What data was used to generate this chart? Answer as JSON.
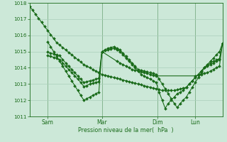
{
  "bg_color": "#cce8d8",
  "grid_color": "#aacfba",
  "line_color": "#1a6b1a",
  "xlabel": "Pression niveau de la mer(  hPa  )",
  "xlabel_color": "#1a6b1a",
  "ytick_color": "#1a6b1a",
  "xtick_color": "#1a6b1a",
  "ylim": [
    1011,
    1018
  ],
  "xtick_positions": [
    18,
    72,
    127,
    165
  ],
  "xtick_labels": [
    "Sam",
    "Mar",
    "Dim",
    "Lun"
  ],
  "vlines_x": [
    18,
    72,
    127,
    165
  ],
  "yticks": [
    1011,
    1012,
    1013,
    1014,
    1015,
    1016,
    1017,
    1018
  ],
  "series1_x": [
    0,
    3,
    6,
    9,
    12,
    15,
    18,
    21,
    24,
    27,
    30,
    33,
    36,
    39,
    42,
    45,
    48,
    51,
    54,
    57,
    60,
    63,
    66,
    69,
    72,
    75,
    78,
    81,
    84,
    87,
    90,
    93,
    96,
    99,
    102,
    105,
    108,
    111,
    114,
    117,
    120,
    123,
    126,
    129,
    132,
    135,
    138,
    141,
    144,
    147,
    150,
    153,
    156,
    159,
    162,
    165,
    168,
    171,
    174,
    177,
    180,
    183,
    186,
    189,
    192
  ],
  "series1_y": [
    1017.8,
    1017.55,
    1017.3,
    1017.05,
    1016.8,
    1016.55,
    1016.3,
    1016.05,
    1015.8,
    1015.55,
    1015.4,
    1015.25,
    1015.1,
    1014.95,
    1014.8,
    1014.65,
    1014.5,
    1014.35,
    1014.2,
    1014.1,
    1014.0,
    1013.9,
    1013.8,
    1013.7,
    1013.6,
    1013.55,
    1013.5,
    1013.45,
    1013.4,
    1013.35,
    1013.3,
    1013.25,
    1013.2,
    1013.15,
    1013.1,
    1013.05,
    1013.0,
    1012.95,
    1012.9,
    1012.85,
    1012.8,
    1012.75,
    1012.7,
    1012.65,
    1012.6,
    1012.6,
    1012.6,
    1012.6,
    1012.6,
    1012.65,
    1012.7,
    1012.75,
    1012.8,
    1013.0,
    1013.2,
    1013.4,
    1013.6,
    1013.8,
    1014.0,
    1014.2,
    1014.4,
    1014.6,
    1014.8,
    1015.0,
    1015.5
  ],
  "series2_x": [
    18,
    21,
    24,
    27,
    30,
    33,
    36,
    39,
    42,
    45,
    48,
    51,
    54,
    57,
    60,
    63,
    66,
    69,
    72,
    75,
    78,
    81,
    84,
    87,
    90,
    93,
    96,
    99,
    102,
    105,
    108,
    111,
    114,
    117,
    120,
    123,
    126,
    129,
    132,
    135,
    138,
    141,
    144,
    147,
    150,
    153,
    156,
    159,
    162,
    165,
    168,
    171,
    174,
    177,
    180,
    183,
    186,
    189,
    192
  ],
  "series2_y": [
    1015.6,
    1015.3,
    1015.0,
    1014.7,
    1014.4,
    1014.1,
    1013.8,
    1013.5,
    1013.2,
    1012.9,
    1012.6,
    1012.3,
    1012.0,
    1012.1,
    1012.2,
    1012.3,
    1012.4,
    1012.5,
    1015.0,
    1015.05,
    1015.1,
    1015.15,
    1015.2,
    1015.1,
    1015.0,
    1014.8,
    1014.6,
    1014.4,
    1014.2,
    1014.0,
    1013.8,
    1013.6,
    1013.5,
    1013.4,
    1013.3,
    1013.2,
    1013.1,
    1012.5,
    1012.0,
    1011.5,
    1011.8,
    1012.0,
    1012.2,
    1012.4,
    1012.5,
    1012.6,
    1012.8,
    1013.0,
    1013.2,
    1013.4,
    1013.6,
    1013.8,
    1014.0,
    1014.1,
    1014.2,
    1014.3,
    1014.4,
    1014.5,
    1015.5
  ],
  "series3_x": [
    18,
    21,
    24,
    27,
    30,
    33,
    36,
    39,
    42,
    45,
    48,
    51,
    54,
    57,
    60,
    63,
    66,
    69,
    72,
    75,
    78,
    81,
    84,
    87,
    90,
    93,
    96,
    99,
    102,
    105,
    108,
    111,
    114,
    117,
    120,
    123,
    126,
    129,
    132,
    135,
    138,
    141,
    144,
    147,
    150,
    153,
    156,
    159,
    162,
    165,
    168,
    171,
    174,
    177,
    180,
    183,
    186,
    189,
    192
  ],
  "series3_y": [
    1014.75,
    1014.7,
    1014.65,
    1014.6,
    1014.5,
    1014.3,
    1014.1,
    1013.9,
    1013.7,
    1013.5,
    1013.3,
    1013.1,
    1012.85,
    1012.9,
    1013.0,
    1013.05,
    1013.1,
    1013.15,
    1015.0,
    1015.1,
    1015.2,
    1015.25,
    1015.3,
    1015.2,
    1015.1,
    1014.9,
    1014.7,
    1014.5,
    1014.3,
    1014.1,
    1013.9,
    1013.85,
    1013.8,
    1013.75,
    1013.7,
    1013.65,
    1013.6,
    1013.3,
    1013.0,
    1012.7,
    1012.4,
    1012.1,
    1011.8,
    1011.55,
    1011.8,
    1012.0,
    1012.2,
    1012.5,
    1012.8,
    1013.1,
    1013.4,
    1013.7,
    1014.0,
    1014.15,
    1014.3,
    1014.4,
    1014.5,
    1014.55,
    1015.5
  ],
  "series4_x": [
    18,
    21,
    24,
    27,
    30,
    33,
    36,
    39,
    42,
    45,
    48,
    51,
    54,
    57,
    60,
    63,
    66,
    69,
    72,
    87,
    90,
    93,
    96,
    99,
    102,
    105,
    108,
    111,
    114,
    117,
    120,
    123,
    126,
    165,
    168,
    171,
    174,
    177,
    180,
    183,
    186,
    189,
    192
  ],
  "series4_y": [
    1015.0,
    1014.9,
    1014.85,
    1014.8,
    1014.75,
    1014.5,
    1014.3,
    1014.1,
    1013.9,
    1013.7,
    1013.5,
    1013.3,
    1013.1,
    1013.15,
    1013.2,
    1013.25,
    1013.3,
    1013.35,
    1015.0,
    1014.4,
    1014.3,
    1014.2,
    1014.1,
    1014.0,
    1013.9,
    1013.85,
    1013.8,
    1013.75,
    1013.7,
    1013.65,
    1013.6,
    1013.55,
    1013.5,
    1013.5,
    1013.55,
    1013.6,
    1013.65,
    1013.7,
    1013.8,
    1013.9,
    1014.0,
    1014.1,
    1015.5
  ]
}
